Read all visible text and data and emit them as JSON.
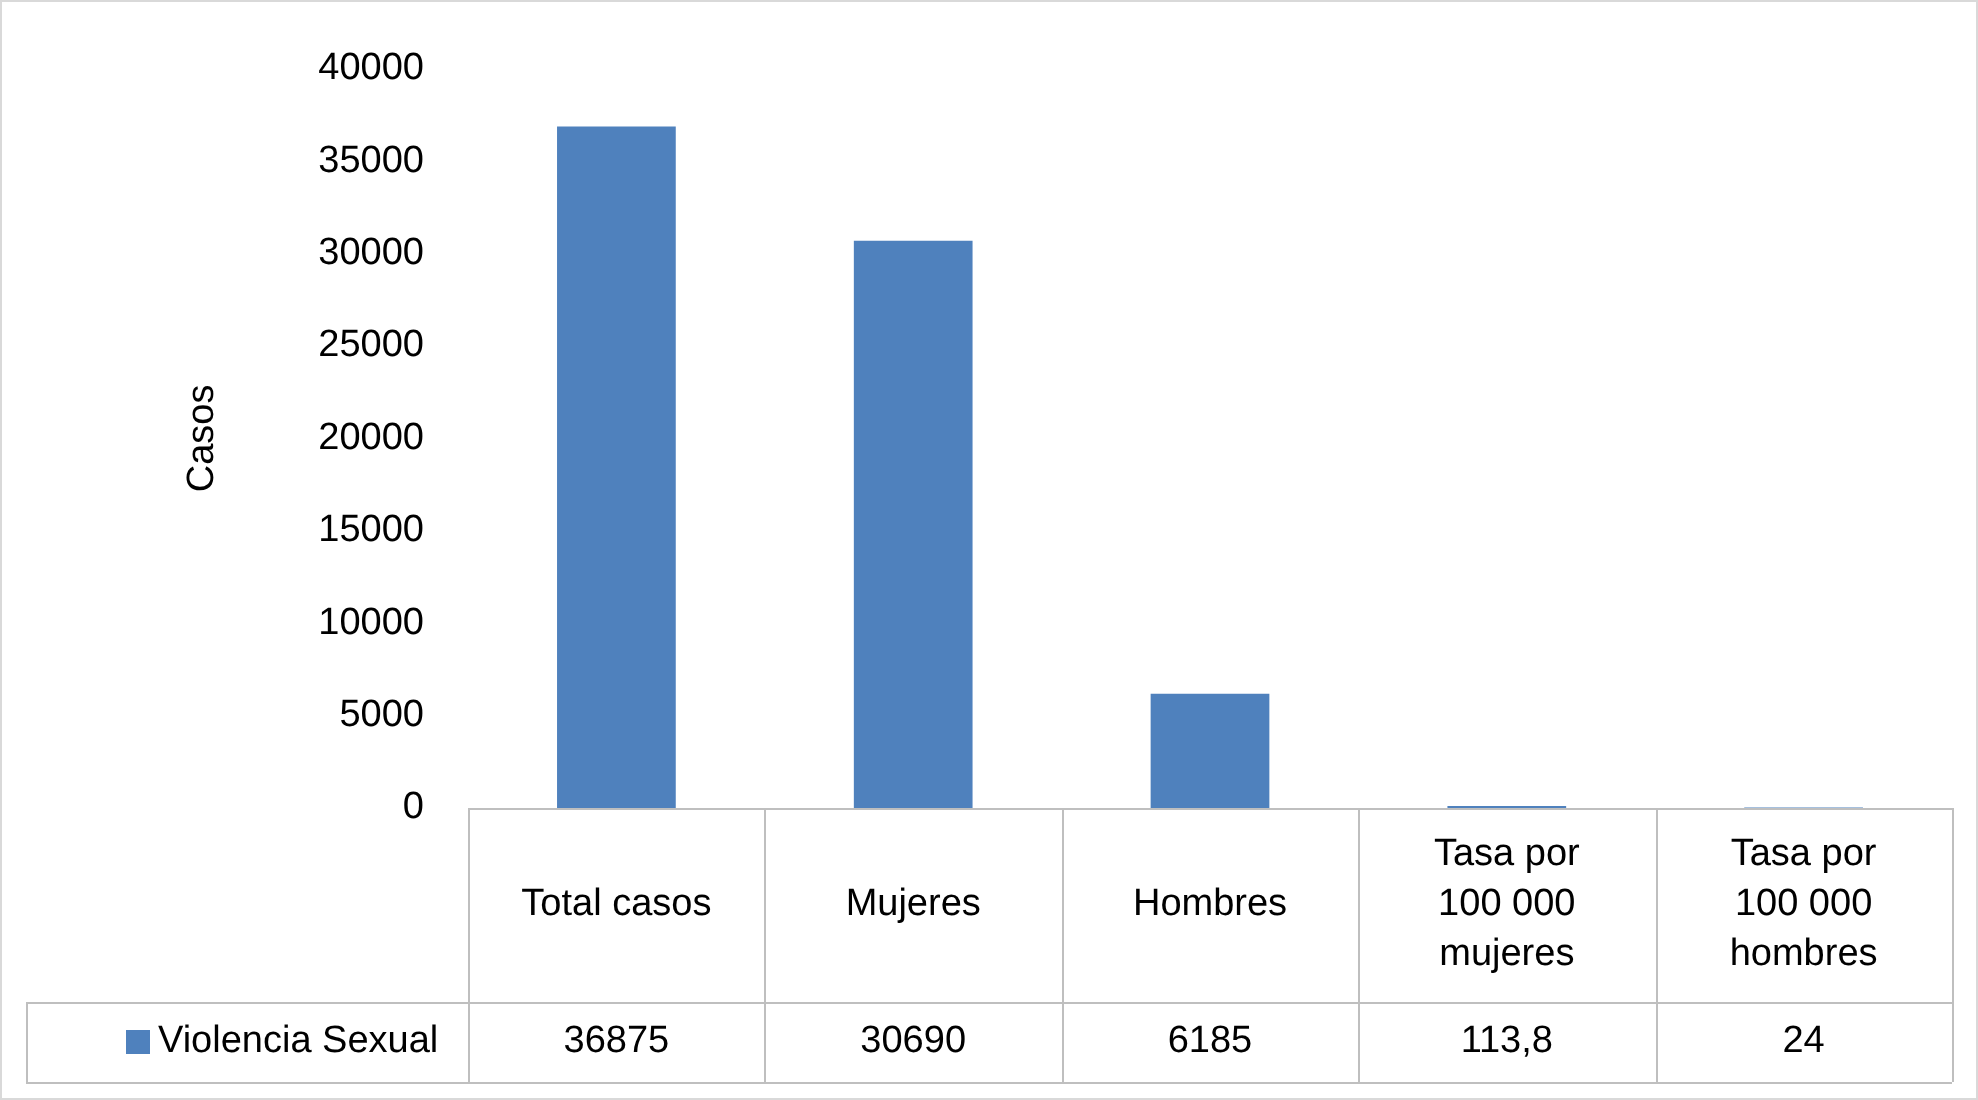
{
  "chart_data": {
    "type": "bar",
    "ylabel": "Casos",
    "categories": [
      "Total casos",
      "Mujeres",
      "Hombres",
      "Tasa por 100 000 mujeres",
      "Tasa por 100 000 hombres"
    ],
    "series": [
      {
        "name": "Violencia Sexual",
        "color": "#4f81bd",
        "values": [
          36875,
          30690,
          6185,
          113.8,
          24
        ],
        "value_labels": [
          "36875",
          "30690",
          "6185",
          "113,8",
          "24"
        ]
      }
    ],
    "ylim": [
      0,
      40000
    ],
    "yticks": [
      0,
      5000,
      10000,
      15000,
      20000,
      25000,
      30000,
      35000,
      40000
    ],
    "grid": false,
    "data_labels": true
  }
}
